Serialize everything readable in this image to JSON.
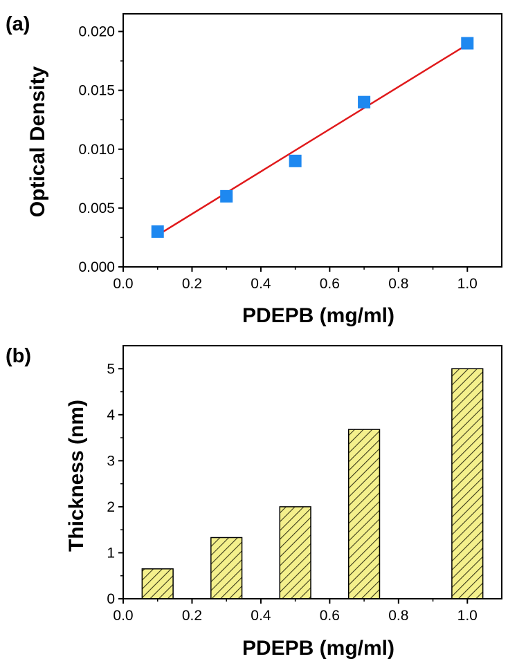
{
  "chart_data": [
    {
      "panel_label": "(a)",
      "type": "scatter",
      "xlabel": "PDEPB (mg/ml)",
      "ylabel": "Optical Density",
      "xlim": [
        0.0,
        1.1
      ],
      "ylim": [
        0.0,
        0.0215
      ],
      "xticks": [
        "0.0",
        "0.2",
        "0.4",
        "0.6",
        "0.8",
        "1.0"
      ],
      "yticks": [
        "0.000",
        "0.005",
        "0.010",
        "0.015",
        "0.020"
      ],
      "series": [
        {
          "marker": "square",
          "color": "#1e88f0",
          "x": [
            0.1,
            0.3,
            0.5,
            0.7,
            1.0
          ],
          "y": [
            0.003,
            0.006,
            0.009,
            0.014,
            0.019
          ]
        }
      ],
      "fit_line": {
        "color": "#e0191b",
        "x": [
          0.1,
          1.0
        ],
        "y": [
          0.0027,
          0.0189
        ]
      },
      "grid": false
    },
    {
      "panel_label": "(b)",
      "type": "bar",
      "xlabel": "PDEPB (mg/ml)",
      "ylabel": "Thickness (nm)",
      "xlim": [
        0.0,
        1.1
      ],
      "ylim": [
        0,
        5.5
      ],
      "xticks": [
        "0.0",
        "0.2",
        "0.4",
        "0.6",
        "0.8",
        "1.0"
      ],
      "yticks": [
        "0",
        "1",
        "2",
        "3",
        "4",
        "5"
      ],
      "x": [
        0.1,
        0.3,
        0.5,
        0.7,
        1.0
      ],
      "values": [
        0.65,
        1.33,
        2.0,
        3.68,
        5.0
      ],
      "bar_width": 0.09,
      "fill_color": "#f4f08c",
      "hatch": "diagonal",
      "grid": false
    }
  ]
}
